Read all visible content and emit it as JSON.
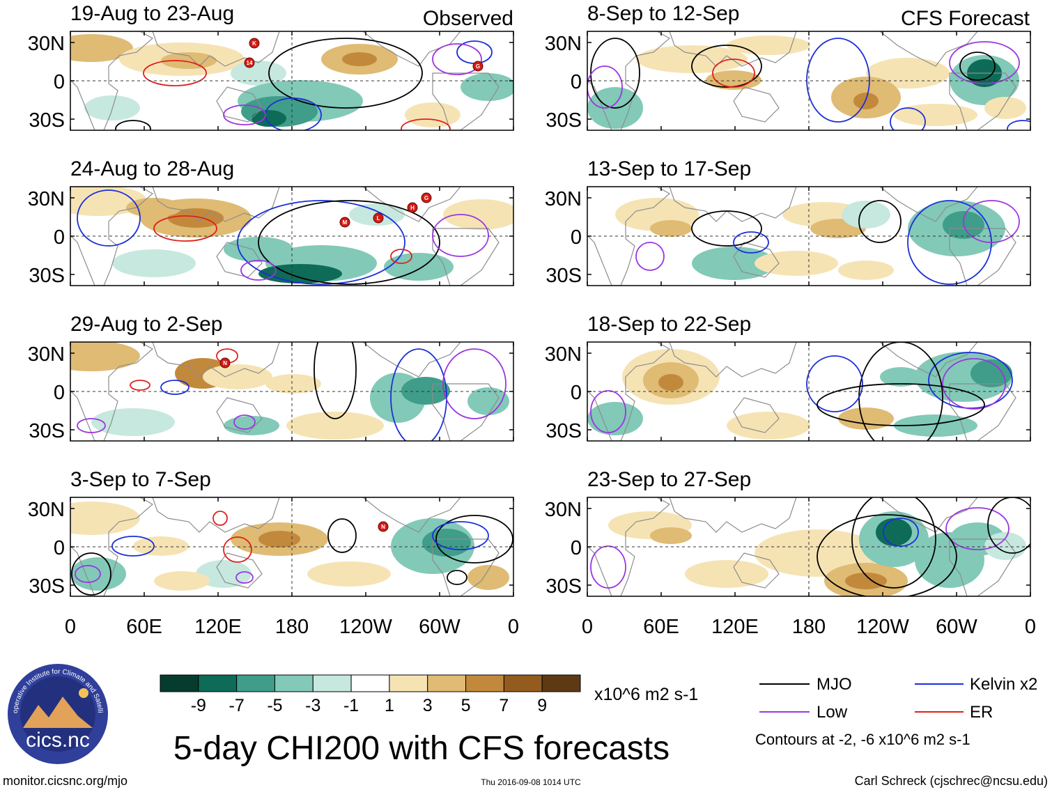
{
  "panel_labels": {
    "observed": "Observed",
    "forecast": "CFS Forecast"
  },
  "panels": [
    {
      "period": "19-Aug to 23-Aug",
      "source": "observed"
    },
    {
      "period": "24-Aug to 28-Aug",
      "source": "observed"
    },
    {
      "period": "29-Aug to 2-Sep",
      "source": "observed"
    },
    {
      "period": "3-Sep to 7-Sep",
      "source": "observed"
    },
    {
      "period": "8-Sep to 12-Sep",
      "source": "forecast"
    },
    {
      "period": "13-Sep to 17-Sep",
      "source": "forecast"
    },
    {
      "period": "18-Sep to 22-Sep",
      "source": "forecast"
    },
    {
      "period": "23-Sep to 27-Sep",
      "source": "forecast"
    }
  ],
  "lat_labels": [
    "30N",
    "0",
    "30S"
  ],
  "lon_labels": [
    "0",
    "60E",
    "120E",
    "180",
    "120W",
    "60W",
    "0"
  ],
  "storm_markers": [
    {
      "panel": 0,
      "label": "K"
    },
    {
      "panel": 0,
      "label": "14"
    },
    {
      "panel": 0,
      "label": "G"
    },
    {
      "panel": 1,
      "label": "M"
    },
    {
      "panel": 1,
      "label": "L"
    },
    {
      "panel": 1,
      "label": "H"
    },
    {
      "panel": 1,
      "label": "G"
    },
    {
      "panel": 2,
      "label": "N"
    },
    {
      "panel": 3,
      "label": "N"
    }
  ],
  "colorbar": {
    "ticks": [
      "-9",
      "-7",
      "-5",
      "-3",
      "-1",
      "1",
      "3",
      "5",
      "7",
      "9"
    ],
    "units": "x10^6 m2 s-1",
    "colors": [
      "#053c2e",
      "#0e6b57",
      "#3f9d8a",
      "#82c9b8",
      "#c6e8df",
      "#ffffff",
      "#f6e3b4",
      "#dfbb74",
      "#c2893c",
      "#945b1f",
      "#5e3a14"
    ]
  },
  "legend": {
    "items": [
      {
        "label": "MJO",
        "color": "#000000"
      },
      {
        "label": "Kelvin x2",
        "color": "#1a2fd8"
      },
      {
        "label": "Low",
        "color": "#9b35e0"
      },
      {
        "label": "ER",
        "color": "#e0201a"
      }
    ],
    "note": "Contours at -2, -6 x10^6 m2 s-1"
  },
  "title": "5-day CHI200 with CFS forecasts",
  "logo": {
    "name": "cics.nc",
    "ring_text": "Cooperative Institute for Climate and Satellites"
  },
  "footer": {
    "website": "monitor.cicsnc.org/mjo",
    "timestamp": "Thu 2016-09-08 1014 UTC",
    "credit": "Carl Schreck (cjschrec@ncsu.edu)"
  }
}
